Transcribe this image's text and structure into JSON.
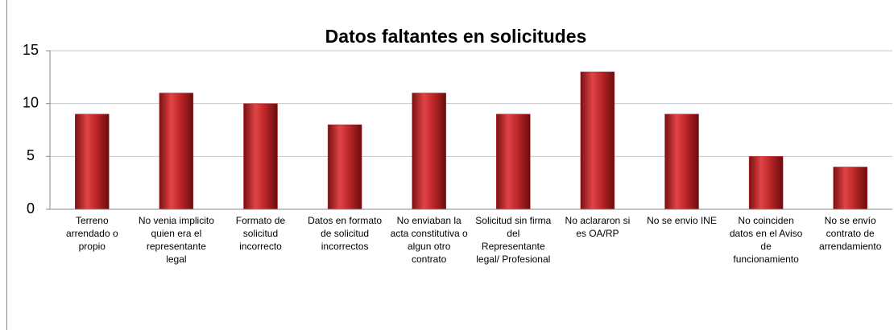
{
  "chart_data": {
    "type": "bar",
    "title": "Datos faltantes en solicitudes",
    "categories": [
      "Terreno arrendado o propio",
      "No venia implicito quien era el representante legal",
      "Formato de solicitud incorrecto",
      "Datos en formato de solicitud incorrectos",
      "No enviaban la acta constitutiva o algun otro contrato",
      "Solicitud sin firma del Representante legal/ Profesional",
      "No aclararon si es OA/RP",
      "No se envio  INE",
      "No coinciden datos en el Aviso de funcionamiento",
      "No se envío contrato de arrendamiento"
    ],
    "values": [
      9,
      11,
      10,
      8,
      11,
      9,
      13,
      9,
      5,
      4
    ],
    "color": "#c0282a",
    "ylim": [
      0,
      15
    ],
    "yticks": [
      0,
      5,
      10,
      15
    ],
    "grid": true
  }
}
